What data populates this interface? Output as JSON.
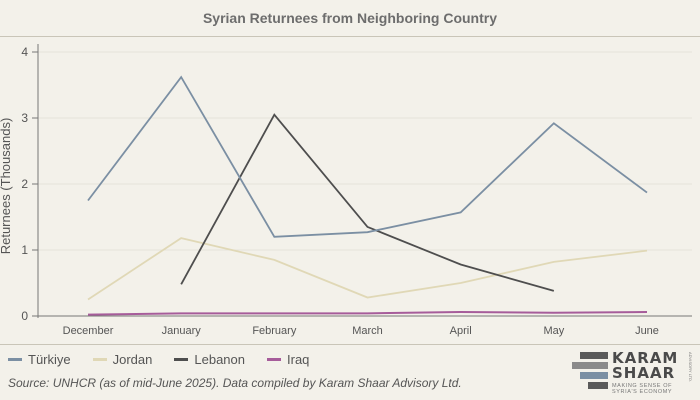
{
  "header": {
    "title": "Syrian Returnees from Neighboring Country"
  },
  "chart_data": {
    "type": "line",
    "title": "Syrian Returnees from Neighboring Country",
    "xlabel": "",
    "ylabel": "Returnees (Thousands)",
    "ylim": [
      0,
      4
    ],
    "yticks": [
      "0",
      "1",
      "2",
      "3",
      "4"
    ],
    "categories": [
      "December",
      "January",
      "February",
      "March",
      "April",
      "May",
      "June"
    ],
    "series": [
      {
        "name": "Türkiye",
        "color": "#7b8fa3",
        "values": [
          1.75,
          3.62,
          1.2,
          1.27,
          1.57,
          2.92,
          1.87
        ]
      },
      {
        "name": "Jordan",
        "color": "#e0d8b6",
        "values": [
          0.25,
          1.18,
          0.85,
          0.28,
          0.5,
          0.82,
          0.99
        ]
      },
      {
        "name": "Lebanon",
        "color": "#4e4e4e",
        "values": [
          null,
          0.48,
          3.05,
          1.35,
          0.78,
          0.38,
          null
        ]
      },
      {
        "name": "Iraq",
        "color": "#a65c9a",
        "values": [
          0.02,
          0.04,
          0.04,
          0.04,
          0.06,
          0.05,
          0.06
        ]
      }
    ],
    "grid": true,
    "legend": "bottom-left"
  },
  "footer": {
    "source": "Source: UNHCR (as of mid-June 2025). Data compiled by Karam Shaar Advisory Ltd."
  },
  "brand": {
    "name_line1": "KARAM",
    "name_line2": "SHAAR",
    "tagline": "MAKING SENSE OF SYRIA'S ECONOMY",
    "side_text": "ADVISORY LTD."
  }
}
